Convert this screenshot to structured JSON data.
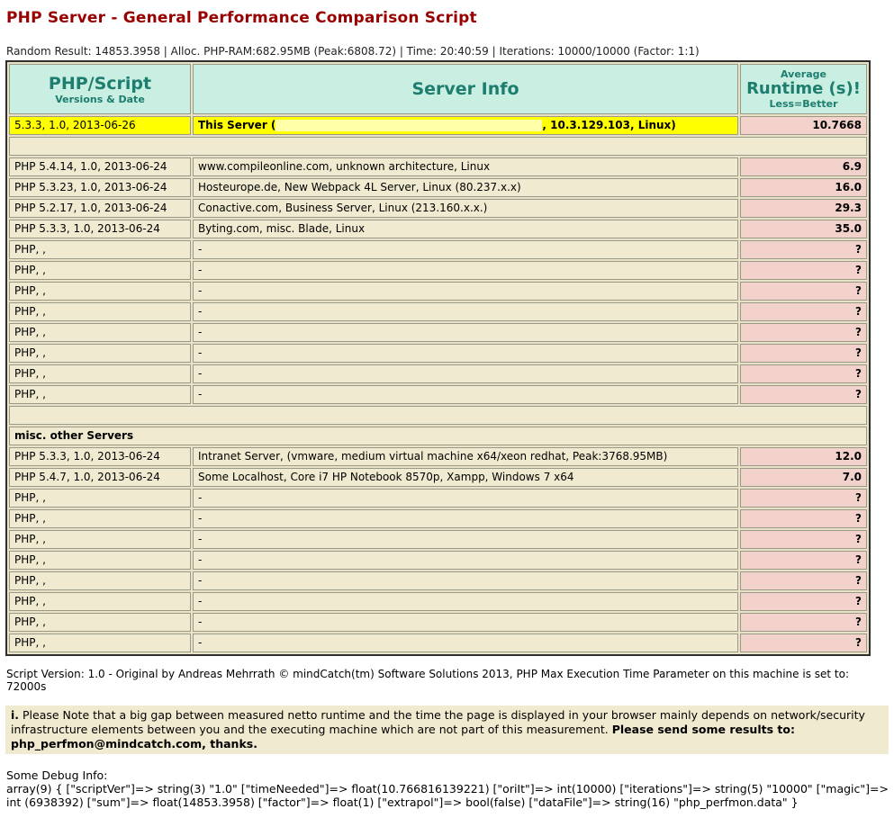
{
  "page": {
    "title": "PHP Server - General Performance Comparison Script",
    "status_line": "Random Result: 14853.3958 | Alloc. PHP-RAM:682.95MB (Peak:6808.72) | Time: 20:40:59 | Iterations: 10000/10000 (Factor: 1:1)"
  },
  "table": {
    "headers": {
      "col1_title": "PHP/Script",
      "col1_sub": "Versions & Date",
      "col2_title": "Server Info",
      "col3_top": "Average",
      "col3_main": "Runtime (s)!",
      "col3_sub": "Less=Better"
    },
    "rows": [
      {
        "kind": "highlight",
        "version": "5.3.3, 1.0, 2013-06-26",
        "server_prefix": "This Server (",
        "server_redacted": true,
        "server_suffix": ", 10.3.129.103, Linux)",
        "runtime": "10.7668"
      },
      {
        "kind": "spacer"
      },
      {
        "kind": "data",
        "version": "PHP 5.4.14, 1.0, 2013-06-24",
        "server": "www.compileonline.com, unknown architecture, Linux",
        "runtime": "6.9"
      },
      {
        "kind": "data",
        "version": "PHP 5.3.23, 1.0, 2013-06-24",
        "server": "Hosteurope.de, New Webpack 4L Server, Linux (80.237.x.x)",
        "runtime": "16.0"
      },
      {
        "kind": "data",
        "version": "PHP 5.2.17, 1.0, 2013-06-24",
        "server": "Conactive.com, Business Server, Linux (213.160.x.x.)",
        "runtime": "29.3"
      },
      {
        "kind": "data",
        "version": "PHP 5.3.3, 1.0, 2013-06-24",
        "server": "Byting.com, misc. Blade, Linux",
        "runtime": "35.0"
      },
      {
        "kind": "data",
        "version": "PHP, ,",
        "server": "-",
        "runtime": "?"
      },
      {
        "kind": "data",
        "version": "PHP, ,",
        "server": "-",
        "runtime": "?"
      },
      {
        "kind": "data",
        "version": "PHP, ,",
        "server": "-",
        "runtime": "?"
      },
      {
        "kind": "data",
        "version": "PHP, ,",
        "server": "-",
        "runtime": "?"
      },
      {
        "kind": "data",
        "version": "PHP, ,",
        "server": "-",
        "runtime": "?"
      },
      {
        "kind": "data",
        "version": "PHP, ,",
        "server": "-",
        "runtime": "?"
      },
      {
        "kind": "data",
        "version": "PHP, ,",
        "server": "-",
        "runtime": "?"
      },
      {
        "kind": "data",
        "version": "PHP, ,",
        "server": "-",
        "runtime": "?"
      },
      {
        "kind": "spacer"
      },
      {
        "kind": "label",
        "text": "misc. other Servers"
      },
      {
        "kind": "data",
        "version": "PHP 5.3.3, 1.0, 2013-06-24",
        "server": "Intranet Server, (vmware, medium virtual machine x64/xeon redhat, Peak:3768.95MB)",
        "runtime": "12.0"
      },
      {
        "kind": "data",
        "version": "PHP 5.4.7, 1.0, 2013-06-24",
        "server": "Some Localhost, Core i7 HP Notebook 8570p, Xampp, Windows 7 x64",
        "runtime": "7.0"
      },
      {
        "kind": "data",
        "version": "PHP, ,",
        "server": "-",
        "runtime": "?"
      },
      {
        "kind": "data",
        "version": "PHP, ,",
        "server": "-",
        "runtime": "?"
      },
      {
        "kind": "data",
        "version": "PHP, ,",
        "server": "-",
        "runtime": "?"
      },
      {
        "kind": "data",
        "version": "PHP, ,",
        "server": "-",
        "runtime": "?"
      },
      {
        "kind": "data",
        "version": "PHP, ,",
        "server": "-",
        "runtime": "?"
      },
      {
        "kind": "data",
        "version": "PHP, ,",
        "server": "-",
        "runtime": "?"
      },
      {
        "kind": "data",
        "version": "PHP, ,",
        "server": "-",
        "runtime": "?"
      },
      {
        "kind": "data",
        "version": "PHP, ,",
        "server": "-",
        "runtime": "?"
      }
    ]
  },
  "footer": {
    "script_version_line": "Script Version: 1.0 - Original by Andreas Mehrrath © mindCatch(tm) Software Solutions 2013, PHP Max Execution Time Parameter on this machine is set to: 72000s",
    "note_marker": "i.",
    "note_body": " Please Note that a big gap between measured netto runtime and the time the page is displayed in your browser mainly depends on network/security infrastructure elements between you and the executing machine which are not part of this measurement. ",
    "note_bold": "Please send some results to: php_perfmon@mindcatch.com, thanks.",
    "debug_label": "Some Debug Info:",
    "debug_text": "array(9) { [\"scriptVer\"]=> string(3) \"1.0\" [\"timeNeeded\"]=> float(10.766816139221) [\"oriIt\"]=> int(10000) [\"iterations\"]=> string(5) \"10000\" [\"magic\"]=> int (6938392) [\"sum\"]=> float(14853.3958) [\"factor\"]=> float(1) [\"extrapol\"]=> bool(false) [\"dataFile\"]=> string(16) \"php_perfmon.data\" }"
  },
  "colors": {
    "title_text": "#990000",
    "header_background": "#c9eee2",
    "header_text": "#1d7d6f",
    "row_background": "#f0ead0",
    "runtime_background": "#f2d2cb",
    "highlight_background": "#ffff00",
    "redaction_patch": "#ffffa8",
    "cell_border": "#999988",
    "table_border": "#2f2f2f",
    "table_gap_background": "#e9e2c6"
  }
}
